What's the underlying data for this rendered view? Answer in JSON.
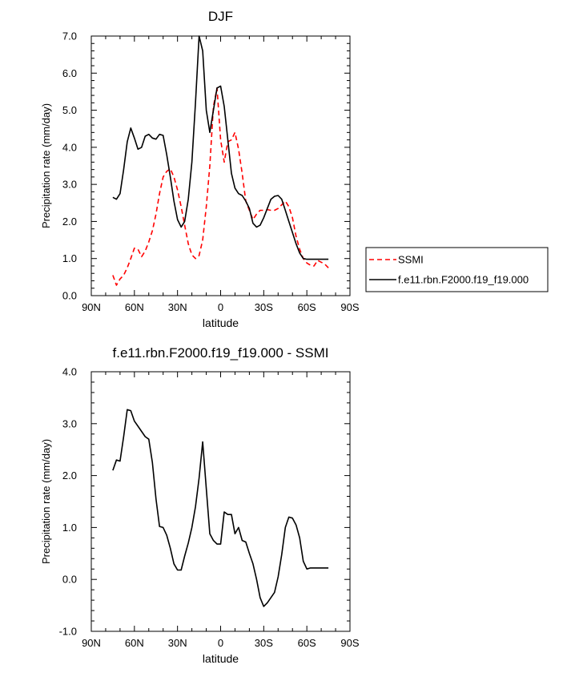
{
  "chart_data": [
    {
      "type": "line",
      "title": "DJF",
      "xlabel": "latitude",
      "ylabel": "Precipitation rate (mm/day)",
      "xlim": [
        -90,
        90
      ],
      "ylim": [
        0,
        7
      ],
      "x_ticks": [
        -90,
        -60,
        -30,
        0,
        30,
        60,
        90
      ],
      "x_tick_labels": [
        "90N",
        "60N",
        "30N",
        "0",
        "30S",
        "60S",
        "90S"
      ],
      "y_ticks": [
        0,
        1,
        2,
        3,
        4,
        5,
        6,
        7
      ],
      "y_tick_labels": [
        "0.0",
        "1.0",
        "2.0",
        "3.0",
        "4.0",
        "5.0",
        "6.0",
        "7.0"
      ],
      "legend": "outside-right",
      "series": [
        {
          "name": "SSMI",
          "color": "#ff0000",
          "style": "dashed",
          "x": [
            -75,
            -72.5,
            -70,
            -67.5,
            -65,
            -62.5,
            -60,
            -57.5,
            -55,
            -52.5,
            -50,
            -47.5,
            -45,
            -42.5,
            -40,
            -37.5,
            -35,
            -32.5,
            -30,
            -27.5,
            -25,
            -22.5,
            -20,
            -17.5,
            -15,
            -12.5,
            -10,
            -7.5,
            -5,
            -2.5,
            0,
            2.5,
            5,
            7.5,
            10,
            12.5,
            15,
            17.5,
            20,
            22.5,
            25,
            27.5,
            30,
            32.5,
            35,
            37.5,
            40,
            42.5,
            45,
            47.5,
            50,
            52.5,
            55,
            57.5,
            60,
            62.5,
            65,
            67.5,
            70,
            72.5,
            75
          ],
          "y": [
            0.55,
            0.28,
            0.45,
            0.55,
            0.75,
            1.0,
            1.28,
            1.25,
            1.05,
            1.2,
            1.45,
            1.75,
            2.2,
            2.75,
            3.2,
            3.35,
            3.42,
            3.2,
            2.85,
            2.4,
            1.9,
            1.4,
            1.1,
            1.0,
            1.08,
            1.5,
            2.4,
            3.5,
            5.1,
            5.6,
            4.2,
            3.6,
            4.15,
            4.2,
            4.4,
            3.95,
            3.3,
            2.55,
            2.3,
            2.05,
            2.2,
            2.3,
            2.3,
            2.32,
            2.3,
            2.3,
            2.35,
            2.45,
            2.55,
            2.4,
            2.1,
            1.6,
            1.25,
            1.0,
            0.88,
            0.82,
            0.8,
            0.95,
            0.9,
            0.85,
            0.75
          ]
        },
        {
          "name": "f.e11.rbn.F2000.f19_f19.000",
          "color": "#000000",
          "style": "solid",
          "x": [
            -75,
            -72.5,
            -70,
            -67.5,
            -65,
            -62.5,
            -60,
            -57.5,
            -55,
            -52.5,
            -50,
            -47.5,
            -45,
            -42.5,
            -40,
            -37.5,
            -35,
            -32.5,
            -30,
            -27.5,
            -25,
            -22.5,
            -20,
            -17.5,
            -15,
            -12.5,
            -10,
            -7.5,
            -5,
            -2.5,
            0,
            2.5,
            5,
            7.5,
            10,
            12.5,
            15,
            17.5,
            20,
            22.5,
            25,
            27.5,
            30,
            32.5,
            35,
            37.5,
            40,
            42.5,
            45,
            47.5,
            50,
            52.5,
            55,
            57.5,
            60,
            62.5,
            65,
            67.5,
            70,
            72.5,
            75
          ],
          "y": [
            2.65,
            2.6,
            2.75,
            3.4,
            4.15,
            4.52,
            4.25,
            3.95,
            4.0,
            4.3,
            4.35,
            4.25,
            4.22,
            4.35,
            4.32,
            3.8,
            3.2,
            2.55,
            2.05,
            1.85,
            2.0,
            2.6,
            3.6,
            5.2,
            7.0,
            6.6,
            5.0,
            4.4,
            5.0,
            5.6,
            5.65,
            5.1,
            4.2,
            3.3,
            2.9,
            2.75,
            2.7,
            2.55,
            2.35,
            1.95,
            1.85,
            1.9,
            2.1,
            2.35,
            2.6,
            2.68,
            2.7,
            2.6,
            2.3,
            2.0,
            1.7,
            1.4,
            1.15,
            1.0,
            0.98,
            0.98,
            0.98,
            0.98,
            0.98,
            0.98,
            0.98
          ]
        }
      ]
    },
    {
      "type": "line",
      "title": "f.e11.rbn.F2000.f19_f19.000 - SSMI",
      "xlabel": "latitude",
      "ylabel": "Precipitation rate (mm/day)",
      "xlim": [
        -90,
        90
      ],
      "ylim": [
        -1,
        4
      ],
      "x_ticks": [
        -90,
        -60,
        -30,
        0,
        30,
        60,
        90
      ],
      "x_tick_labels": [
        "90N",
        "60N",
        "30N",
        "0",
        "30S",
        "60S",
        "90S"
      ],
      "y_ticks": [
        -1,
        0,
        1,
        2,
        3,
        4
      ],
      "y_tick_labels": [
        "-1.0",
        "0.0",
        "1.0",
        "2.0",
        "3.0",
        "4.0"
      ],
      "series": [
        {
          "name": "f.e11.rbn.F2000.f19_f19.000 - SSMI",
          "color": "#000000",
          "style": "solid",
          "x": [
            -75,
            -72.5,
            -70,
            -67.5,
            -65,
            -62.5,
            -60,
            -57.5,
            -55,
            -52.5,
            -50,
            -47.5,
            -45,
            -42.5,
            -40,
            -37.5,
            -35,
            -32.5,
            -30,
            -27.5,
            -25,
            -22.5,
            -20,
            -17.5,
            -15,
            -12.5,
            -10,
            -7.5,
            -5,
            -2.5,
            0,
            2.5,
            5,
            7.5,
            10,
            12.5,
            15,
            17.5,
            20,
            22.5,
            25,
            27.5,
            30,
            32.5,
            35,
            37.5,
            40,
            42.5,
            45,
            47.5,
            50,
            52.5,
            55,
            57.5,
            60,
            62.5,
            65,
            67.5,
            70,
            72.5,
            75
          ],
          "y": [
            2.1,
            2.3,
            2.28,
            2.75,
            3.27,
            3.25,
            3.05,
            2.95,
            2.85,
            2.75,
            2.7,
            2.25,
            1.55,
            1.02,
            1.0,
            0.85,
            0.6,
            0.3,
            0.18,
            0.18,
            0.45,
            0.7,
            1.0,
            1.4,
            1.95,
            2.65,
            1.75,
            0.88,
            0.75,
            0.68,
            0.68,
            1.3,
            1.25,
            1.25,
            0.88,
            1.0,
            0.75,
            0.72,
            0.5,
            0.3,
            0.0,
            -0.35,
            -0.52,
            -0.45,
            -0.35,
            -0.25,
            0.05,
            0.48,
            1.0,
            1.2,
            1.18,
            1.05,
            0.8,
            0.35,
            0.2,
            0.22,
            0.22,
            0.22,
            0.22,
            0.22,
            0.22
          ]
        }
      ]
    }
  ]
}
